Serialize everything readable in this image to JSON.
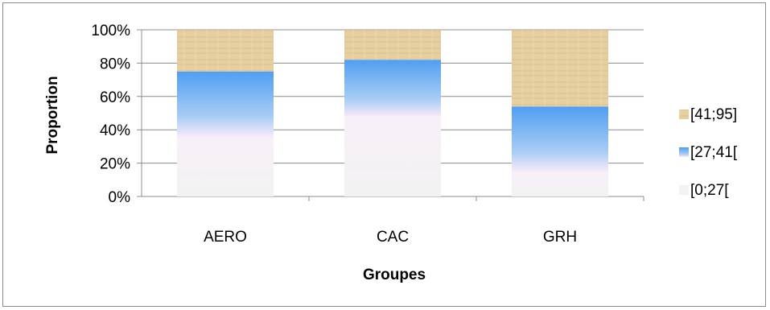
{
  "chart_data": {
    "type": "bar",
    "stacked": true,
    "percent": true,
    "title": "",
    "xlabel": "Groupes",
    "ylabel": "Proportion",
    "categories": [
      "AERO",
      "CAC",
      "GRH"
    ],
    "ylim": [
      0,
      100
    ],
    "yticks": [
      "0%",
      "20%",
      "40%",
      "60%",
      "80%",
      "100%"
    ],
    "grid": true,
    "legend_position": "right",
    "series": [
      {
        "name": "[0;27[",
        "values": [
          36,
          48,
          15
        ],
        "color": "#f0f0f0"
      },
      {
        "name": "[27;41[",
        "values": [
          39,
          34,
          39
        ],
        "color": "#5fa8f0"
      },
      {
        "name": "[41;95]",
        "values": [
          25,
          18,
          46
        ],
        "color": "#e2cc98"
      }
    ]
  }
}
